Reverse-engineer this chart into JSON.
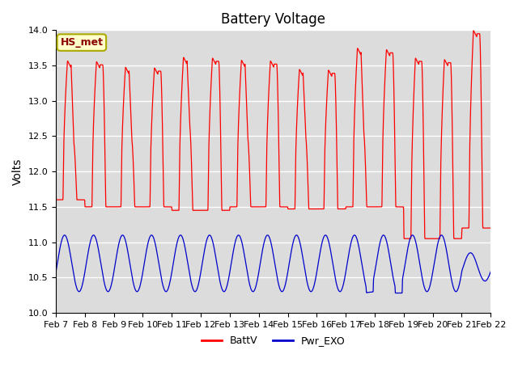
{
  "title": "Battery Voltage",
  "ylabel": "Volts",
  "ylim": [
    10.0,
    14.0
  ],
  "yticks": [
    10.0,
    10.5,
    11.0,
    11.5,
    12.0,
    12.5,
    13.0,
    13.5,
    14.0
  ],
  "xlabel_dates": [
    "Feb 7",
    "Feb 8",
    "Feb 9",
    "Feb 10",
    "Feb 11",
    "Feb 12",
    "Feb 13",
    "Feb 14",
    "Feb 15",
    "Feb 16",
    "Feb 17",
    "Feb 18",
    "Feb 19",
    "Feb 20",
    "Feb 21",
    "Feb 22"
  ],
  "annotation_text": "HS_met",
  "annotation_color": "#8B0000",
  "annotation_bg": "#FFFFCC",
  "annotation_edge": "#AAAA00",
  "bg_color": "#DCDCDC",
  "line1_color": "#FF0000",
  "line2_color": "#0000CC",
  "legend_labels": [
    "BattV",
    "Pwr_EXO"
  ],
  "title_fontsize": 12,
  "label_fontsize": 10,
  "tick_fontsize": 8,
  "grid_color": "#FFFFFF",
  "n_days": 15,
  "figsize": [
    6.4,
    4.8
  ],
  "dpi": 100
}
